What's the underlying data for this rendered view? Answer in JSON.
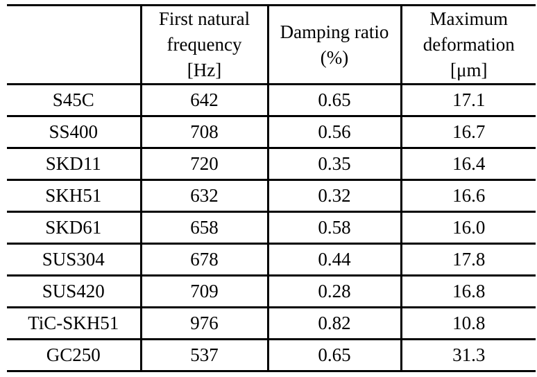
{
  "table": {
    "headers": [
      "",
      "First natural frequency [Hz]",
      "Damping ratio (%)",
      "Maximum deformation [μm]"
    ],
    "rows": [
      [
        "S45C",
        "642",
        "0.65",
        "17.1"
      ],
      [
        "SS400",
        "708",
        "0.56",
        "16.7"
      ],
      [
        "SKD11",
        "720",
        "0.35",
        "16.4"
      ],
      [
        "SKH51",
        "632",
        "0.32",
        "16.6"
      ],
      [
        "SKD61",
        "658",
        "0.58",
        "16.0"
      ],
      [
        "SUS304",
        "678",
        "0.44",
        "17.8"
      ],
      [
        "SUS420",
        "709",
        "0.28",
        "16.8"
      ],
      [
        "TiC-SKH51",
        "976",
        "0.82",
        "10.8"
      ],
      [
        "GC250",
        "537",
        "0.65",
        "31.3"
      ]
    ],
    "colors": {
      "border": "#000000",
      "text": "#000000",
      "background": "#ffffff"
    }
  }
}
